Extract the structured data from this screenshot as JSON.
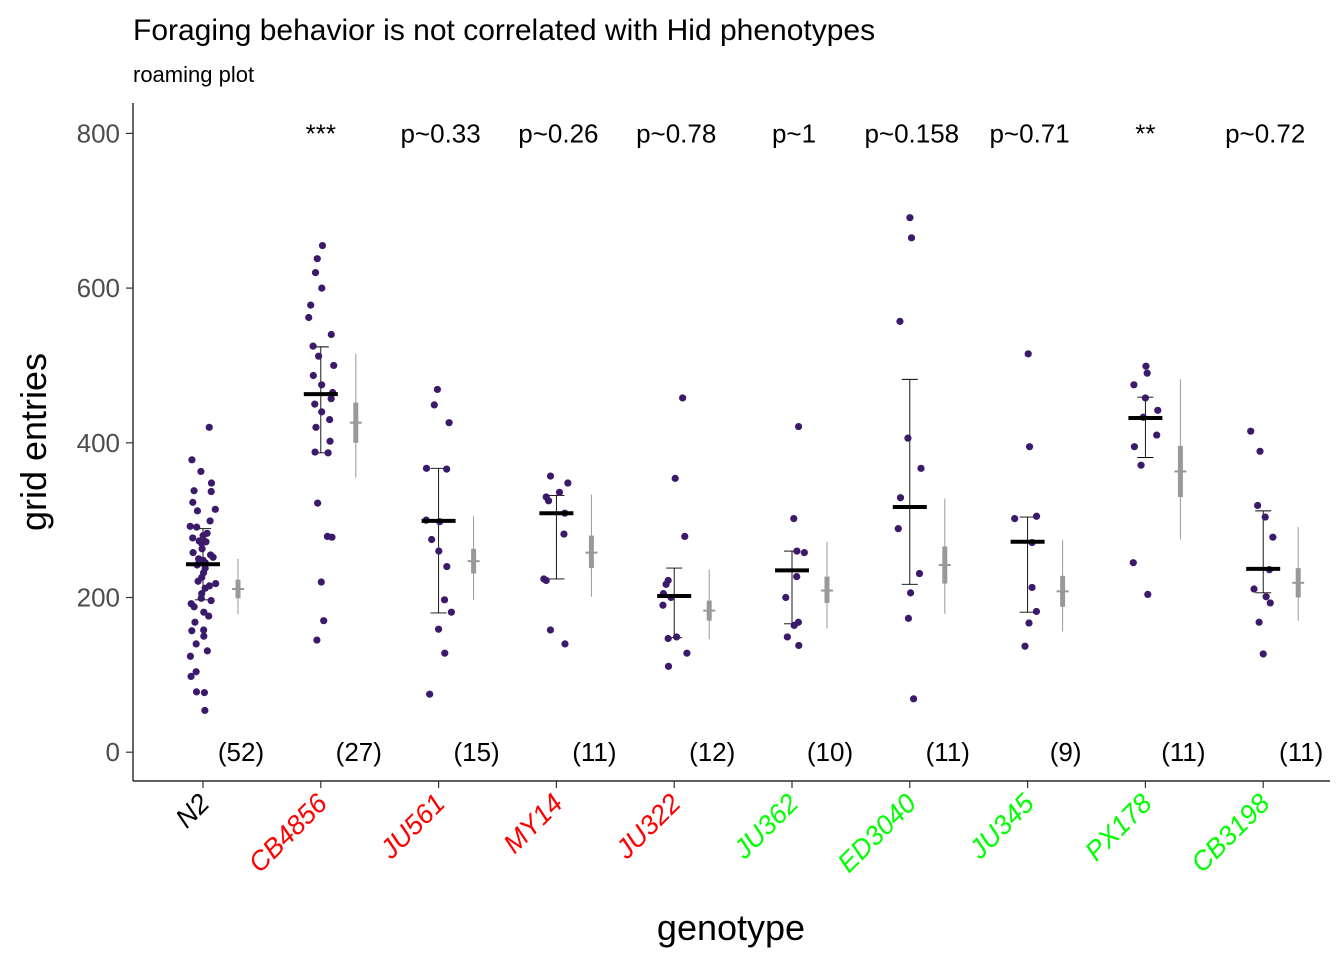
{
  "chart_data": {
    "type": "scatter",
    "title": "Foraging behavior is not correlated with Hid phenotypes",
    "subtitle": "roaming plot",
    "xlabel": "genotype",
    "ylabel": "grid entries",
    "ylim": [
      -35,
      840
    ],
    "yticks": [
      0,
      200,
      400,
      600,
      800
    ],
    "grid": false,
    "point_color": "#3b1a6b",
    "summary_color": "#999999",
    "tick_colors": {
      "reference": "#000000",
      "red": "#ff0000",
      "green": "#00ff00"
    },
    "groups": [
      {
        "name": "N2",
        "color": "#000000",
        "annotation": "",
        "n_label": "(52)",
        "mean": 243,
        "sd": [
          197,
          289
        ],
        "summary": {
          "mean": 211,
          "ci": [
            199,
            223
          ],
          "range": [
            178,
            250
          ]
        },
        "points": [
          420,
          378,
          363,
          348,
          338,
          337,
          323,
          314,
          312,
          299,
          292,
          291,
          283,
          280,
          277,
          273,
          272,
          270,
          263,
          258,
          255,
          252,
          250,
          248,
          245,
          242,
          238,
          232,
          226,
          221,
          218,
          215,
          212,
          205,
          199,
          196,
          192,
          188,
          181,
          176,
          168,
          158,
          157,
          150,
          140,
          131,
          124,
          104,
          98,
          78,
          77,
          54
        ]
      },
      {
        "name": "CB4856",
        "color": "#ff0000",
        "annotation": "***",
        "n_label": "(27)",
        "mean": 463,
        "sd": [
          387,
          524
        ],
        "summary": {
          "mean": 426,
          "ci": [
            400,
            452
          ],
          "range": [
            355,
            515
          ]
        },
        "points": [
          655,
          638,
          620,
          600,
          578,
          562,
          540,
          525,
          512,
          500,
          487,
          475,
          465,
          457,
          450,
          440,
          430,
          420,
          402,
          388,
          387,
          322,
          279,
          278,
          220,
          170,
          145
        ]
      },
      {
        "name": "JU561",
        "color": "#ff0000",
        "annotation": "p~0.33",
        "n_label": "(15)",
        "mean": 299,
        "sd": [
          180,
          367
        ],
        "summary": {
          "mean": 247,
          "ci": [
            231,
            263
          ],
          "range": [
            197,
            305
          ]
        },
        "points": [
          469,
          449,
          426,
          367,
          366,
          300,
          298,
          275,
          260,
          240,
          197,
          181,
          159,
          128,
          75
        ]
      },
      {
        "name": "MY14",
        "color": "#ff0000",
        "annotation": "p~0.26",
        "n_label": "(11)",
        "mean": 309,
        "sd": [
          224,
          332
        ],
        "summary": {
          "mean": 258,
          "ci": [
            238,
            280
          ],
          "range": [
            201,
            333
          ]
        },
        "points": [
          357,
          348,
          336,
          330,
          325,
          309,
          282,
          224,
          222,
          158,
          140
        ]
      },
      {
        "name": "JU322",
        "color": "#ff0000",
        "annotation": "p~0.78",
        "n_label": "(12)",
        "mean": 202,
        "sd": [
          148,
          238
        ],
        "summary": {
          "mean": 183,
          "ci": [
            170,
            196
          ],
          "range": [
            146,
            236
          ]
        },
        "points": [
          458,
          354,
          279,
          222,
          217,
          205,
          200,
          190,
          149,
          147,
          128,
          111
        ]
      },
      {
        "name": "JU362",
        "color": "#00ff00",
        "annotation": "p~1",
        "n_label": "(10)",
        "mean": 235,
        "sd": [
          166,
          260
        ],
        "summary": {
          "mean": 209,
          "ci": [
            193,
            227
          ],
          "range": [
            160,
            272
          ]
        },
        "points": [
          421,
          302,
          260,
          258,
          227,
          200,
          168,
          164,
          149,
          138
        ]
      },
      {
        "name": "ED3040",
        "color": "#00ff00",
        "annotation": "p~0.158",
        "n_label": "(11)",
        "mean": 317,
        "sd": [
          217,
          482
        ],
        "summary": {
          "mean": 242,
          "ci": [
            218,
            266
          ],
          "range": [
            179,
            328
          ]
        },
        "points": [
          691,
          665,
          557,
          406,
          367,
          329,
          289,
          231,
          206,
          173,
          69
        ]
      },
      {
        "name": "JU345",
        "color": "#00ff00",
        "annotation": "p~0.71",
        "n_label": "(9)",
        "mean": 272,
        "sd": [
          181,
          304
        ],
        "summary": {
          "mean": 208,
          "ci": [
            188,
            228
          ],
          "range": [
            156,
            274
          ]
        },
        "points": [
          515,
          395,
          305,
          302,
          271,
          213,
          182,
          167,
          137
        ]
      },
      {
        "name": "PX178",
        "color": "#00ff00",
        "annotation": "**",
        "n_label": "(11)",
        "mean": 432,
        "sd": [
          381,
          459
        ],
        "summary": {
          "mean": 363,
          "ci": [
            330,
            396
          ],
          "range": [
            275,
            482
          ]
        },
        "points": [
          499,
          490,
          475,
          458,
          442,
          433,
          410,
          395,
          371,
          245,
          204
        ]
      },
      {
        "name": "CB3198",
        "color": "#00ff00",
        "annotation": "p~0.72",
        "n_label": "(11)",
        "mean": 237,
        "sd": [
          206,
          312
        ],
        "summary": {
          "mean": 219,
          "ci": [
            200,
            238
          ],
          "range": [
            170,
            291
          ]
        },
        "points": [
          415,
          389,
          319,
          304,
          278,
          236,
          211,
          201,
          193,
          168,
          127
        ]
      }
    ]
  }
}
